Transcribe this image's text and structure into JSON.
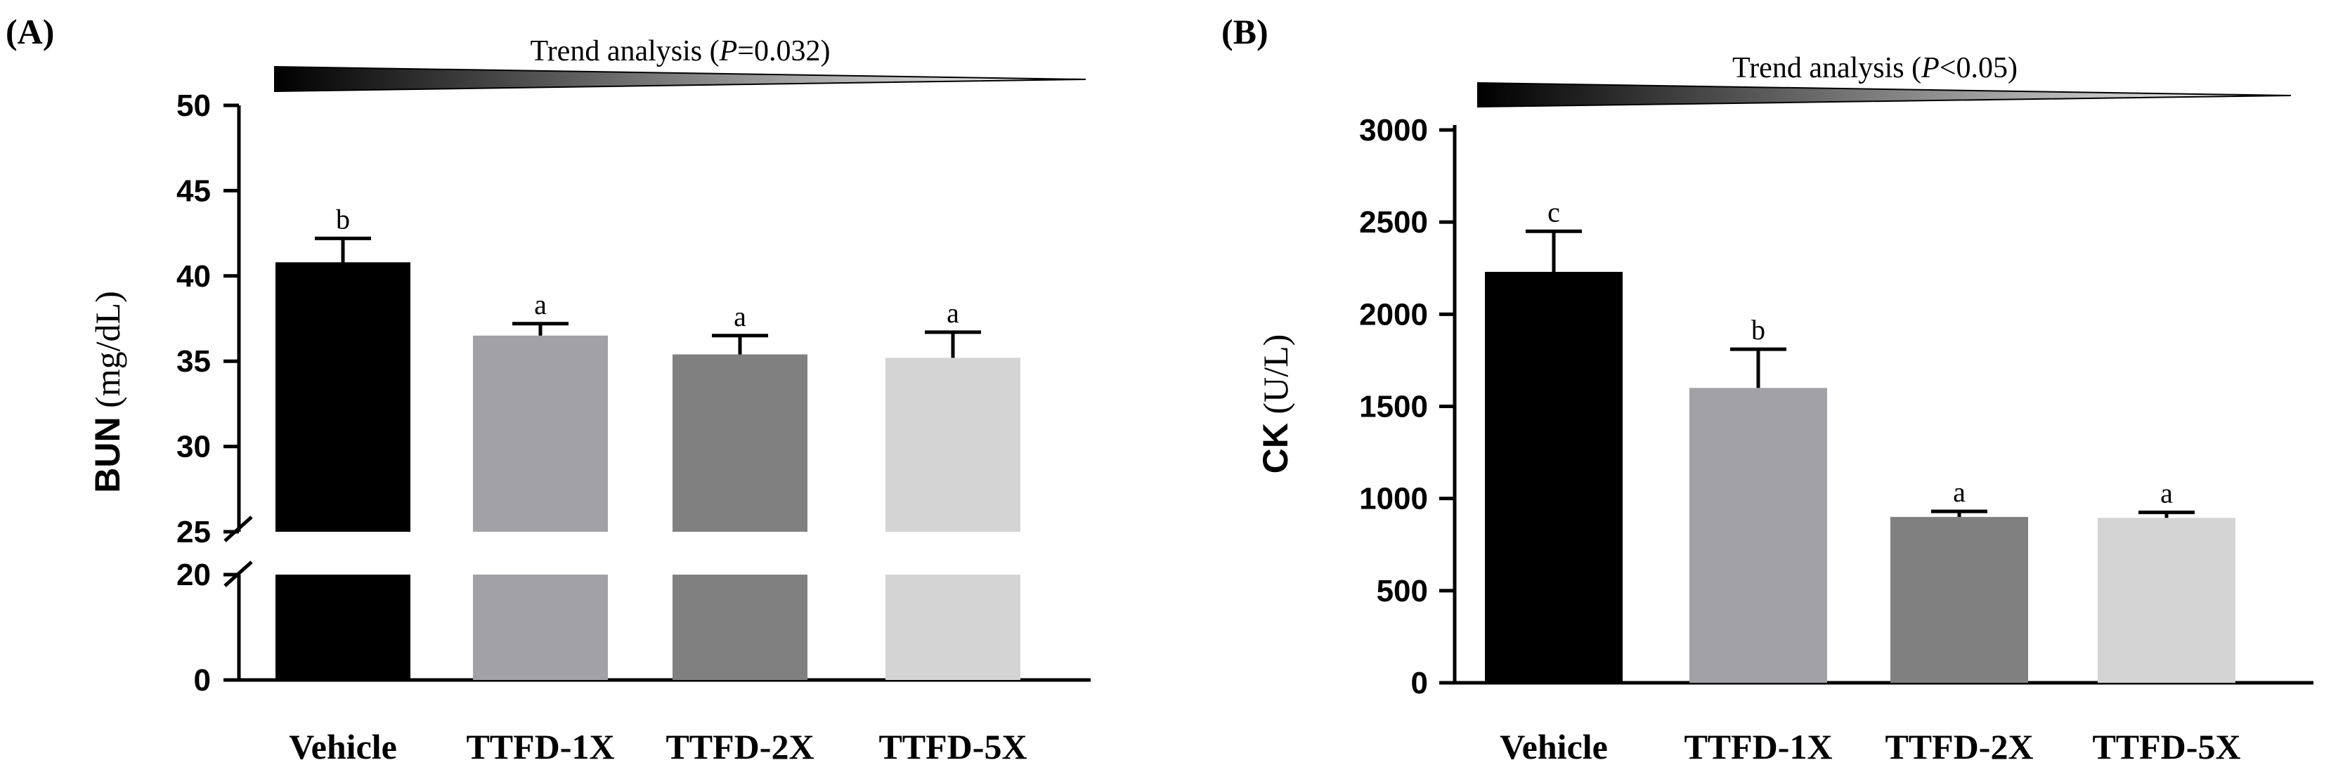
{
  "chart_data": [
    {
      "type": "bar",
      "panel_label": "(A)",
      "categories": [
        "Vehicle",
        "TTFD-1X",
        "TTFD-2X",
        "TTFD-5X"
      ],
      "values": [
        40.8,
        36.5,
        35.4,
        35.2
      ],
      "errors": [
        1.4,
        0.7,
        1.1,
        1.5
      ],
      "significance": [
        "b",
        "a",
        "a",
        "a"
      ],
      "bar_colors": [
        "#000000",
        "#a2a1a6",
        "#808080",
        "#d4d4d4"
      ],
      "ylabel_bold": "BUN",
      "ylabel_rest": " (mg/dL)",
      "yticks": [
        "0",
        "20",
        "25",
        "30",
        "35",
        "40",
        "45",
        "50"
      ],
      "y_axis_break": [
        20,
        25
      ],
      "ylim": [
        0,
        50
      ],
      "trend": {
        "prefix": "Trend analysis (",
        "p": "P",
        "rest": "=0.032)"
      }
    },
    {
      "type": "bar",
      "panel_label": "(B)",
      "categories": [
        "Vehicle",
        "TTFD-1X",
        "TTFD-2X",
        "TTFD-5X"
      ],
      "values": [
        2230,
        1600,
        900,
        895
      ],
      "errors": [
        220,
        210,
        30,
        30
      ],
      "significance": [
        "c",
        "b",
        "a",
        "a"
      ],
      "bar_colors": [
        "#000000",
        "#a2a1a6",
        "#808080",
        "#d4d4d4"
      ],
      "ylabel_bold": "CK",
      "ylabel_rest": " (U/L)",
      "yticks": [
        "0",
        "500",
        "1000",
        "1500",
        "2000",
        "2500",
        "3000"
      ],
      "ylim": [
        0,
        3000
      ],
      "trend": {
        "prefix": "Trend analysis (",
        "p": "P",
        "rest": "<0.05)"
      }
    }
  ]
}
